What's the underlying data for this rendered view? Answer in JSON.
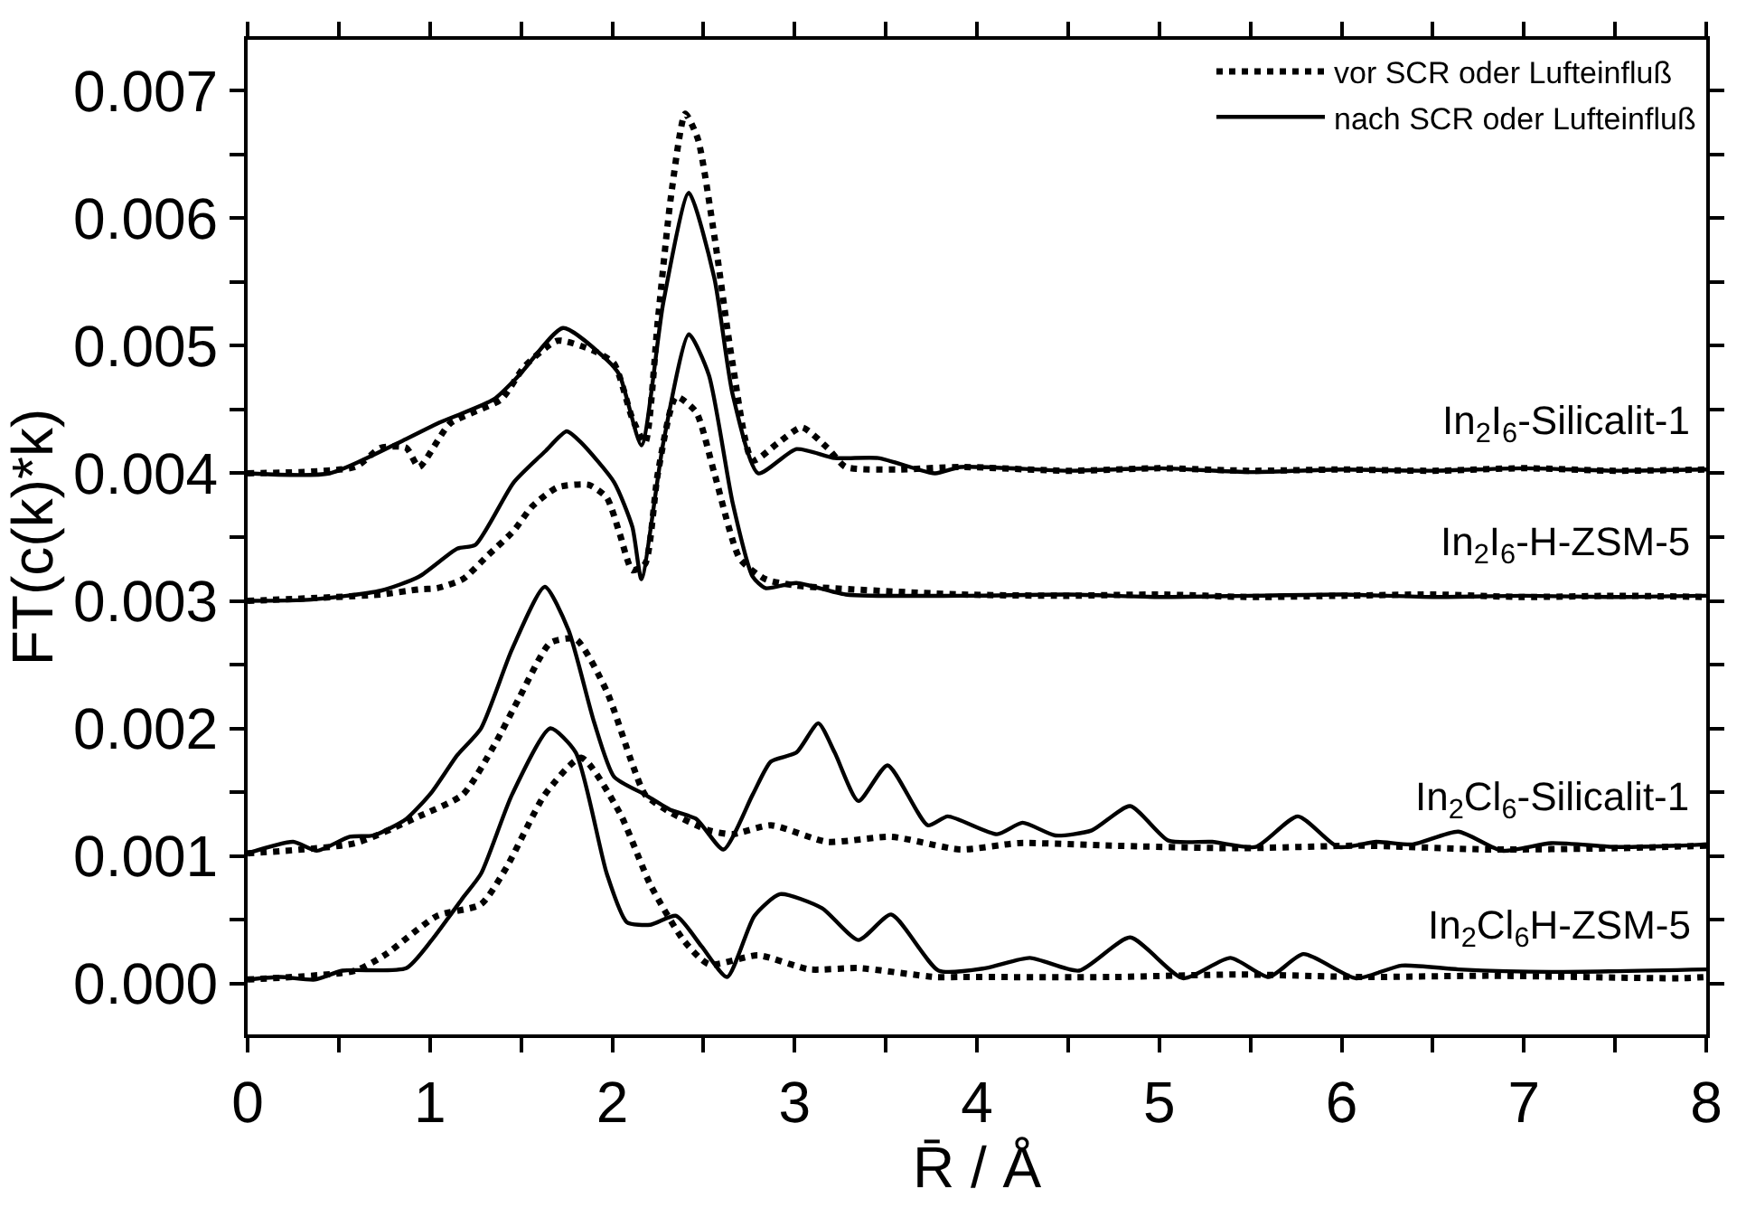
{
  "chart_data": {
    "type": "line",
    "xlabel": "R̄ / Å",
    "ylabel": "FT(c(k)*k)",
    "xlim": [
      0,
      8
    ],
    "ylim": [
      -0.0004,
      0.0074
    ],
    "xticks": [
      0,
      {
        "value": 0.5,
        "label": null
      },
      1,
      {
        "value": 1.5,
        "label": null
      },
      2,
      {
        "value": 2.5,
        "label": null
      },
      3,
      {
        "value": 3.5,
        "label": null
      },
      4,
      {
        "value": 4.5,
        "label": null
      },
      5,
      {
        "value": 5.5,
        "label": null
      },
      6,
      {
        "value": 6.5,
        "label": null
      },
      7,
      {
        "value": 7.5,
        "label": null
      },
      8
    ],
    "yticks": [
      {
        "value": 0,
        "label": "0.000"
      },
      {
        "value": 0.0005,
        "label": null
      },
      {
        "value": 0.001,
        "label": "0.001"
      },
      {
        "value": 0.0015,
        "label": null
      },
      {
        "value": 0.002,
        "label": "0.002"
      },
      {
        "value": 0.0025,
        "label": null
      },
      {
        "value": 0.003,
        "label": "0.003"
      },
      {
        "value": 0.0035,
        "label": null
      },
      {
        "value": 0.004,
        "label": "0.004"
      },
      {
        "value": 0.0045,
        "label": null
      },
      {
        "value": 0.005,
        "label": "0.005"
      },
      {
        "value": 0.0055,
        "label": null
      },
      {
        "value": 0.006,
        "label": "0.006"
      },
      {
        "value": 0.0065,
        "label": null
      },
      {
        "value": 0.007,
        "label": "0.007"
      }
    ],
    "legend": "top right",
    "marker": "none",
    "series": [
      {
        "name": "vor SCR oder Lufteinfluß",
        "color": "#000000",
        "line_style": "dotted",
        "x": [
          0,
          0.59,
          0.73,
          0.87,
          0.94,
          1.11,
          1.39,
          1.52,
          1.7,
          1.9,
          2.01,
          2.11,
          2.18,
          2.25,
          2.32,
          2.4,
          2.47,
          2.56,
          2.66,
          2.77,
          2.91,
          3.04,
          3.18,
          3.28,
          3.56,
          3.91,
          4.5,
          5,
          5.5,
          6,
          6.5,
          7,
          7.5,
          8
        ],
        "values": [
          0.004,
          0.00405,
          0.0042,
          0.0042,
          0.00405,
          0.00439,
          0.00458,
          0.00484,
          0.00504,
          0.00496,
          0.00486,
          0.00443,
          0.00424,
          0.0052,
          0.00615,
          0.00682,
          0.00662,
          0.00586,
          0.00486,
          0.0041,
          0.00424,
          0.00436,
          0.0042,
          0.00405,
          0.00403,
          0.00405,
          0.00402,
          0.00404,
          0.00402,
          0.00403,
          0.00402,
          0.00404,
          0.00402,
          0.00403
        ]
      },
      {
        "name": "nach SCR oder Lufteinfluß",
        "color": "#000000",
        "line_style": "solid",
        "x": [
          0,
          0.45,
          0.87,
          1.04,
          1.35,
          1.49,
          1.73,
          1.97,
          2.04,
          2.16,
          2.28,
          2.42,
          2.56,
          2.66,
          2.8,
          3.01,
          3.22,
          3.46,
          3.77,
          3.91,
          4.5,
          5,
          5.5,
          6,
          6.5,
          7,
          7.5,
          8
        ],
        "values": [
          0.004,
          0.004,
          0.00427,
          0.00439,
          0.00458,
          0.00477,
          0.00514,
          0.00489,
          0.00477,
          0.00422,
          0.00534,
          0.0062,
          0.00553,
          0.00462,
          0.004,
          0.00419,
          0.00412,
          0.00412,
          0.004,
          0.00405,
          0.00402,
          0.00404,
          0.00401,
          0.00403,
          0.00402,
          0.00404,
          0.00402,
          0.00403
        ]
      },
      {
        "color": "#000000",
        "line_style": "dotted",
        "x": [
          0,
          0.73,
          0.94,
          1.04,
          1.18,
          1.32,
          1.46,
          1.56,
          1.7,
          1.87,
          1.97,
          2.04,
          2.11,
          2.18,
          2.25,
          2.35,
          2.46,
          2.56,
          2.7,
          2.84,
          3.01,
          3.91,
          4.5,
          5,
          5.5,
          6,
          6.5,
          7,
          7.5,
          8
        ],
        "values": [
          0.003,
          0.00305,
          0.00309,
          0.0031,
          0.00317,
          0.00336,
          0.00355,
          0.00374,
          0.00389,
          0.00391,
          0.00381,
          0.00353,
          0.00324,
          0.00329,
          0.004,
          0.0046,
          0.00448,
          0.004,
          0.00333,
          0.00317,
          0.00312,
          0.00305,
          0.00304,
          0.00305,
          0.00303,
          0.00304,
          0.00305,
          0.00303,
          0.00304,
          0.00303
        ]
      },
      {
        "color": "#000000",
        "line_style": "solid",
        "x": [
          0,
          0.35,
          0.73,
          0.94,
          1.15,
          1.25,
          1.46,
          1.63,
          1.75,
          1.83,
          2.01,
          2.11,
          2.16,
          2.28,
          2.42,
          2.53,
          2.66,
          2.77,
          2.84,
          3.01,
          3.28,
          3.91,
          4.5,
          5,
          5.5,
          6,
          6.5,
          7,
          7.5,
          8
        ],
        "values": [
          0.003,
          0.00301,
          0.00308,
          0.00319,
          0.00341,
          0.00344,
          0.00393,
          0.00417,
          0.00433,
          0.00424,
          0.00393,
          0.00358,
          0.00317,
          0.00424,
          0.00509,
          0.00477,
          0.00377,
          0.00319,
          0.0031,
          0.00314,
          0.00305,
          0.00304,
          0.00305,
          0.00303,
          0.00304,
          0.00305,
          0.00303,
          0.00304,
          0.00303,
          0.00304
        ]
      },
      {
        "color": "#000000",
        "line_style": "dotted",
        "x": [
          0,
          0.59,
          0.94,
          1.18,
          1.35,
          1.49,
          1.66,
          1.8,
          1.97,
          2.11,
          2.18,
          2.32,
          2.53,
          2.66,
          2.87,
          3.18,
          3.53,
          3.91,
          4.23,
          4.74,
          5.43,
          6.12,
          6.81,
          7.5,
          8
        ],
        "values": [
          0.00102,
          0.0011,
          0.00131,
          0.00148,
          0.00186,
          0.00224,
          0.00267,
          0.0027,
          0.00229,
          0.00172,
          0.00148,
          0.00134,
          0.0012,
          0.00117,
          0.00124,
          0.00111,
          0.00115,
          0.00105,
          0.0011,
          0.00108,
          0.00106,
          0.00108,
          0.00105,
          0.00106,
          0.00108
        ]
      },
      {
        "color": "#000000",
        "line_style": "solid",
        "x": [
          0,
          0.25,
          0.38,
          0.56,
          0.69,
          0.87,
          1.01,
          1.15,
          1.28,
          1.45,
          1.63,
          1.76,
          1.9,
          2.01,
          2.18,
          2.32,
          2.46,
          2.61,
          2.77,
          2.87,
          3.01,
          3.13,
          3.22,
          3.35,
          3.51,
          3.73,
          3.84,
          4.11,
          4.25,
          4.43,
          4.63,
          4.84,
          5.05,
          5.29,
          5.53,
          5.76,
          5.98,
          6.19,
          6.39,
          6.64,
          6.88,
          7.15,
          7.5,
          7.85,
          8
        ],
        "values": [
          0.00102,
          0.00111,
          0.00104,
          0.00115,
          0.00116,
          0.00129,
          0.0015,
          0.00179,
          0.002,
          0.00262,
          0.00311,
          0.00277,
          0.00205,
          0.00162,
          0.00148,
          0.00136,
          0.00129,
          0.00105,
          0.00148,
          0.00174,
          0.00181,
          0.00204,
          0.00181,
          0.00143,
          0.00171,
          0.00124,
          0.00131,
          0.00117,
          0.00126,
          0.00116,
          0.0012,
          0.00139,
          0.00112,
          0.00111,
          0.00107,
          0.00131,
          0.00107,
          0.00111,
          0.00109,
          0.00119,
          0.00104,
          0.0011,
          0.00107,
          0.00108,
          0.00109
        ]
      },
      {
        "color": "#000000",
        "line_style": "dotted",
        "x": [
          0,
          0.59,
          0.75,
          1.04,
          1.28,
          1.42,
          1.63,
          1.83,
          2.04,
          2.21,
          2.39,
          2.53,
          2.8,
          3.08,
          3.35,
          3.77,
          3.91,
          4.74,
          5.43,
          6.12,
          6.81,
          7.85,
          8
        ],
        "values": [
          3e-05,
          0.0001,
          0.00022,
          0.00053,
          0.00062,
          0.00091,
          0.00148,
          0.00177,
          0.00134,
          0.00077,
          0.00034,
          0.00015,
          0.00022,
          0.00011,
          0.00012,
          5e-05,
          5e-05,
          5e-05,
          7e-05,
          5e-05,
          6e-05,
          4e-05,
          5e-05
        ]
      },
      {
        "color": "#000000",
        "line_style": "solid",
        "x": [
          0,
          0.18,
          0.37,
          0.52,
          0.87,
          1.01,
          1.18,
          1.28,
          1.45,
          1.66,
          1.8,
          1.97,
          2.08,
          2.21,
          2.35,
          2.49,
          2.63,
          2.78,
          2.92,
          3.15,
          3.35,
          3.53,
          3.79,
          4.05,
          4.29,
          4.56,
          4.84,
          5.13,
          5.39,
          5.6,
          5.79,
          6.08,
          6.33,
          6.64,
          7.15,
          8
        ],
        "values": [
          3e-05,
          5e-05,
          3e-05,
          0.0001,
          0.00012,
          0.00034,
          0.00067,
          0.00086,
          0.00148,
          0.002,
          0.00181,
          0.00086,
          0.00048,
          0.00046,
          0.00053,
          0.00029,
          5e-05,
          0.00053,
          0.0007,
          0.00059,
          0.00034,
          0.00054,
          0.0001,
          0.00012,
          0.0002,
          0.0001,
          0.00036,
          4e-05,
          0.0002,
          5e-05,
          0.00023,
          4e-05,
          0.00014,
          0.00011,
          9e-05,
          0.00011
        ]
      }
    ],
    "annotations": [
      "In$_{2}$I$_{6}$-Silicalit-1",
      "In$_{2}$I$_{6}$-H-ZSM-5",
      "In$_{2}$Cl$_{6}$-Silicalit-1",
      "In$_{2}$Cl$_{6}$H-ZSM-5"
    ]
  }
}
